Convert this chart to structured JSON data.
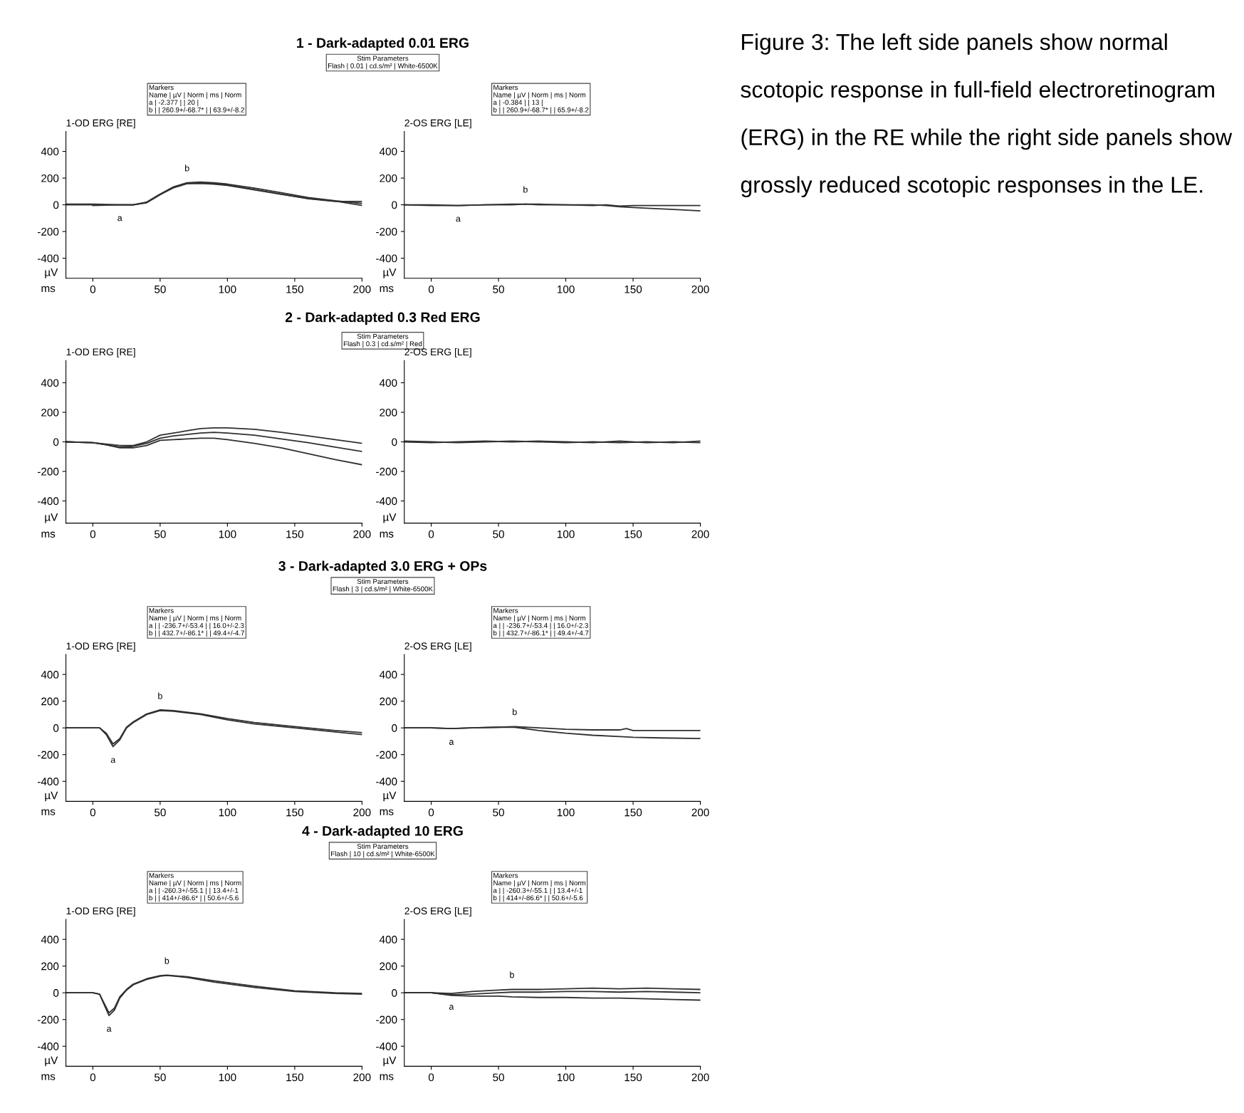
{
  "chart_data": [
    {
      "type": "line",
      "title": "1 - Dark-adapted 0.01 ERG",
      "subtitle": "1-OD ERG [RE]",
      "xlabel": "ms",
      "ylabel": "µV",
      "xlim": [
        -20,
        200
      ],
      "xticks": [
        0,
        50,
        100,
        150,
        200
      ],
      "ylim": [
        -550,
        550
      ],
      "yticks": [
        -400,
        -200,
        0,
        200,
        400
      ],
      "grid": false,
      "series": [
        {
          "color": "#303030",
          "x": [
            -20,
            0,
            20,
            30,
            40,
            50,
            60,
            70,
            80,
            90,
            100,
            120,
            140,
            160,
            180,
            200
          ],
          "values": [
            0,
            0,
            0,
            0,
            20,
            80,
            135,
            165,
            170,
            165,
            155,
            125,
            90,
            55,
            30,
            10
          ]
        },
        {
          "color": "#303030",
          "x": [
            -20,
            0,
            20,
            30,
            40,
            50,
            60,
            70,
            80,
            90,
            100,
            120,
            140,
            160,
            180,
            200
          ],
          "values": [
            5,
            5,
            0,
            0,
            15,
            75,
            130,
            160,
            165,
            160,
            148,
            115,
            80,
            45,
            25,
            25
          ]
        },
        {
          "color": "#303030",
          "x": [
            0,
            20,
            30,
            40,
            50,
            60,
            70,
            80,
            90,
            100,
            120,
            140,
            160,
            180,
            200
          ],
          "values": [
            -5,
            0,
            0,
            18,
            78,
            128,
            158,
            160,
            155,
            145,
            112,
            78,
            48,
            28,
            -5
          ]
        }
      ],
      "annotations": [
        {
          "text": "a",
          "x": 20,
          "y": 0
        },
        {
          "text": "b",
          "x": 70,
          "y": 165
        },
        "Stim Parameters\nFlash | 0.01 | cd.s/m² | White-6500K",
        "Markers\nName | µV | Norm | ms | Norm\na | -2.377 | | 20 |\nb | | 260.9+/-68.7* | | 63.9+/-8.2"
      ]
    },
    {
      "type": "line",
      "subtitle": "2-OS ERG [LE]",
      "xlabel": "ms",
      "ylabel": "µV",
      "xlim": [
        -20,
        200
      ],
      "xticks": [
        0,
        50,
        100,
        150,
        200
      ],
      "ylim": [
        -550,
        550
      ],
      "yticks": [
        -400,
        -200,
        0,
        200,
        400
      ],
      "grid": false,
      "series": [
        {
          "color": "#303030",
          "x": [
            -20,
            0,
            20,
            40,
            60,
            70,
            80,
            100,
            120,
            130,
            140,
            150,
            160,
            180,
            200
          ],
          "values": [
            0,
            0,
            -5,
            0,
            5,
            5,
            5,
            0,
            0,
            -5,
            -15,
            -20,
            -25,
            -35,
            -45
          ]
        },
        {
          "color": "#303030",
          "x": [
            -20,
            0,
            20,
            40,
            60,
            70,
            80,
            100,
            120,
            130,
            140,
            150,
            160,
            180,
            200
          ],
          "values": [
            0,
            -5,
            -5,
            0,
            0,
            5,
            0,
            0,
            -5,
            0,
            -10,
            -5,
            -5,
            -5,
            -5
          ]
        }
      ],
      "annotations": [
        {
          "text": "a",
          "x": 20,
          "y": -5
        },
        {
          "text": "b",
          "x": 70,
          "y": 5
        },
        "Markers\nName | µV | Norm | ms | Norm\na | -0.384 | | 13 |\nb | | 260.9+/-68.7* | | 65.9+/-8.2"
      ]
    },
    {
      "type": "line",
      "title": "2 - Dark-adapted 0.3 Red ERG",
      "subtitle": "1-OD ERG [RE]",
      "xlabel": "ms",
      "ylabel": "µV",
      "xlim": [
        -20,
        200
      ],
      "xticks": [
        0,
        50,
        100,
        150,
        200
      ],
      "ylim": [
        -550,
        550
      ],
      "yticks": [
        -400,
        -200,
        0,
        200,
        400
      ],
      "grid": false,
      "series": [
        {
          "color": "#303030",
          "x": [
            -20,
            0,
            10,
            20,
            30,
            40,
            50,
            60,
            70,
            80,
            90,
            100,
            120,
            140,
            160,
            180,
            200
          ],
          "values": [
            0,
            -5,
            -15,
            -25,
            -25,
            0,
            45,
            60,
            75,
            90,
            95,
            95,
            85,
            65,
            40,
            15,
            -10
          ]
        },
        {
          "color": "#303030",
          "x": [
            -20,
            0,
            10,
            20,
            30,
            40,
            50,
            60,
            70,
            80,
            90,
            100,
            120,
            140,
            160,
            180,
            200
          ],
          "values": [
            0,
            -5,
            -20,
            -35,
            -30,
            -10,
            25,
            40,
            50,
            60,
            65,
            60,
            45,
            20,
            -5,
            -35,
            -65
          ]
        },
        {
          "color": "#303030",
          "x": [
            -20,
            0,
            10,
            20,
            30,
            40,
            50,
            60,
            70,
            80,
            90,
            100,
            120,
            140,
            160,
            180,
            200
          ],
          "values": [
            0,
            -5,
            -20,
            -40,
            -40,
            -25,
            10,
            15,
            20,
            25,
            25,
            15,
            -10,
            -40,
            -80,
            -120,
            -155
          ]
        }
      ],
      "annotations": [
        "Stim Parameters\nFlash | 0.3 | cd.s/m² | Red"
      ]
    },
    {
      "type": "line",
      "subtitle": "2-OS ERG [LE]",
      "xlabel": "ms",
      "ylabel": "µV",
      "xlim": [
        -20,
        200
      ],
      "xticks": [
        0,
        50,
        100,
        150,
        200
      ],
      "ylim": [
        -550,
        550
      ],
      "yticks": [
        -400,
        -200,
        0,
        200,
        400
      ],
      "grid": false,
      "series": [
        {
          "color": "#303030",
          "x": [
            -20,
            0,
            20,
            40,
            60,
            80,
            100,
            120,
            140,
            160,
            180,
            200
          ],
          "values": [
            0,
            -5,
            0,
            5,
            0,
            5,
            0,
            -5,
            5,
            -5,
            0,
            -5
          ]
        },
        {
          "color": "#303030",
          "x": [
            -20,
            0,
            20,
            40,
            60,
            80,
            100,
            120,
            140,
            160,
            180,
            200
          ],
          "values": [
            5,
            0,
            -5,
            0,
            5,
            0,
            -5,
            0,
            -5,
            0,
            -5,
            5
          ]
        }
      ]
    },
    {
      "type": "line",
      "title": "3 - Dark-adapted 3.0 ERG + OPs",
      "subtitle": "1-OD ERG [RE]",
      "xlabel": "ms",
      "ylabel": "µV",
      "xlim": [
        -20,
        200
      ],
      "xticks": [
        0,
        50,
        100,
        150,
        200
      ],
      "ylim": [
        -550,
        550
      ],
      "yticks": [
        -400,
        -200,
        0,
        200,
        400
      ],
      "grid": false,
      "series": [
        {
          "color": "#303030",
          "x": [
            -20,
            0,
            5,
            10,
            15,
            20,
            25,
            30,
            40,
            50,
            60,
            80,
            100,
            120,
            150,
            180,
            200
          ],
          "values": [
            0,
            0,
            0,
            -50,
            -140,
            -90,
            0,
            40,
            100,
            130,
            125,
            100,
            60,
            30,
            0,
            -30,
            -50
          ]
        },
        {
          "color": "#303030",
          "x": [
            -20,
            0,
            5,
            10,
            15,
            20,
            25,
            30,
            40,
            50,
            60,
            80,
            100,
            120,
            150,
            180,
            200
          ],
          "values": [
            0,
            0,
            0,
            -40,
            -120,
            -80,
            5,
            45,
            105,
            135,
            130,
            105,
            70,
            40,
            10,
            -20,
            -35
          ]
        }
      ],
      "annotations": [
        {
          "text": "a",
          "x": 15,
          "y": -140
        },
        {
          "text": "b",
          "x": 50,
          "y": 130
        },
        "Stim Parameters\nFlash | 3 | cd.s/m² | White-6500K",
        "Markers\nName | µV | Norm | ms | Norm\na | | -236.7+/-53.4 | | 16.0+/-2.3\nb | | 432.7+/-86.1* | | 49.4+/-4.7"
      ]
    },
    {
      "type": "line",
      "subtitle": "2-OS ERG [LE]",
      "xlabel": "ms",
      "ylabel": "µV",
      "xlim": [
        -20,
        200
      ],
      "xticks": [
        0,
        50,
        100,
        150,
        200
      ],
      "ylim": [
        -550,
        550
      ],
      "yticks": [
        -400,
        -200,
        0,
        200,
        400
      ],
      "grid": false,
      "series": [
        {
          "color": "#303030",
          "x": [
            -20,
            0,
            15,
            30,
            50,
            62,
            80,
            100,
            120,
            140,
            145,
            150,
            170,
            200
          ],
          "values": [
            0,
            0,
            -5,
            0,
            5,
            10,
            0,
            -10,
            -15,
            -15,
            -5,
            -20,
            -20,
            -20
          ]
        },
        {
          "color": "#303030",
          "x": [
            -20,
            0,
            15,
            30,
            50,
            62,
            80,
            100,
            120,
            140,
            150,
            170,
            200
          ],
          "values": [
            0,
            0,
            -5,
            0,
            5,
            5,
            -20,
            -40,
            -55,
            -65,
            -70,
            -75,
            -80
          ]
        }
      ],
      "annotations": [
        {
          "text": "a",
          "x": 15,
          "y": -5
        },
        {
          "text": "b",
          "x": 62,
          "y": 10
        },
        "Markers\nName | µV | Norm | ms | Norm\na | | -236.7+/-53.4 | | 16.0+/-2.3\nb | | 432.7+/-86.1* | | 49.4+/-4.7"
      ]
    },
    {
      "type": "line",
      "title": "4 - Dark-adapted 10 ERG",
      "subtitle": "1-OD ERG [RE]",
      "xlabel": "ms",
      "ylabel": "µV",
      "xlim": [
        -20,
        200
      ],
      "xticks": [
        0,
        50,
        100,
        150,
        200
      ],
      "ylim": [
        -550,
        550
      ],
      "yticks": [
        -400,
        -200,
        0,
        200,
        400
      ],
      "grid": false,
      "series": [
        {
          "color": "#303030",
          "x": [
            -20,
            0,
            5,
            8,
            12,
            16,
            20,
            25,
            30,
            40,
            50,
            55,
            70,
            90,
            120,
            150,
            180,
            200
          ],
          "values": [
            0,
            0,
            -10,
            -80,
            -170,
            -130,
            -40,
            20,
            60,
            100,
            125,
            130,
            115,
            80,
            40,
            10,
            -5,
            -10
          ]
        },
        {
          "color": "#303030",
          "x": [
            -20,
            0,
            5,
            8,
            12,
            16,
            20,
            25,
            30,
            40,
            50,
            55,
            70,
            90,
            120,
            150,
            180,
            200
          ],
          "values": [
            0,
            0,
            -10,
            -70,
            -150,
            -115,
            -30,
            25,
            65,
            105,
            128,
            132,
            120,
            90,
            50,
            15,
            0,
            -5
          ]
        }
      ],
      "annotations": [
        {
          "text": "a",
          "x": 12,
          "y": -170
        },
        {
          "text": "b",
          "x": 55,
          "y": 130
        },
        "Stim Parameters\nFlash | 10 | cd.s/m² | White-6500K",
        "Markers\nName | µV | Norm | ms | Norm\na | | -260.3+/-55.1 | | 13.4+/-1\nb | | 414+/-86.6* | | 50.6+/-5.6"
      ]
    },
    {
      "type": "line",
      "subtitle": "2-OS ERG [LE]",
      "xlabel": "ms",
      "ylabel": "µV",
      "xlim": [
        -20,
        200
      ],
      "xticks": [
        0,
        50,
        100,
        150,
        200
      ],
      "ylim": [
        -550,
        550
      ],
      "yticks": [
        -400,
        -200,
        0,
        200,
        400
      ],
      "grid": false,
      "series": [
        {
          "color": "#303030",
          "x": [
            -20,
            0,
            15,
            30,
            50,
            60,
            80,
            100,
            120,
            140,
            160,
            180,
            200
          ],
          "values": [
            0,
            0,
            -5,
            10,
            20,
            25,
            25,
            30,
            35,
            30,
            35,
            30,
            25
          ]
        },
        {
          "color": "#303030",
          "x": [
            -20,
            0,
            15,
            30,
            50,
            60,
            80,
            100,
            120,
            140,
            160,
            180,
            200
          ],
          "values": [
            0,
            0,
            -15,
            -10,
            0,
            5,
            5,
            10,
            10,
            5,
            10,
            5,
            0
          ]
        },
        {
          "color": "#303030",
          "x": [
            -20,
            0,
            15,
            30,
            50,
            60,
            80,
            100,
            120,
            140,
            160,
            180,
            200
          ],
          "values": [
            0,
            0,
            -20,
            -25,
            -25,
            -30,
            -35,
            -35,
            -40,
            -40,
            -45,
            -50,
            -55
          ]
        }
      ],
      "annotations": [
        {
          "text": "a",
          "x": 15,
          "y": -5
        },
        {
          "text": "b",
          "x": 60,
          "y": 25
        },
        "Markers\nName | µV | Norm | ms | Norm\na | | -260.3+/-55.1 | | 13.4+/-1\nb | | 414+/-86.6* | | 50.6+/-5.6"
      ]
    },
    {
      "type": "other",
      "annotations": [
        "Figure 3: The left side panels show normal scotopic response in full-field electroretinogram (ERG) in the RE while the right side panels show grossly reduced scotopic responses in the LE."
      ]
    }
  ]
}
